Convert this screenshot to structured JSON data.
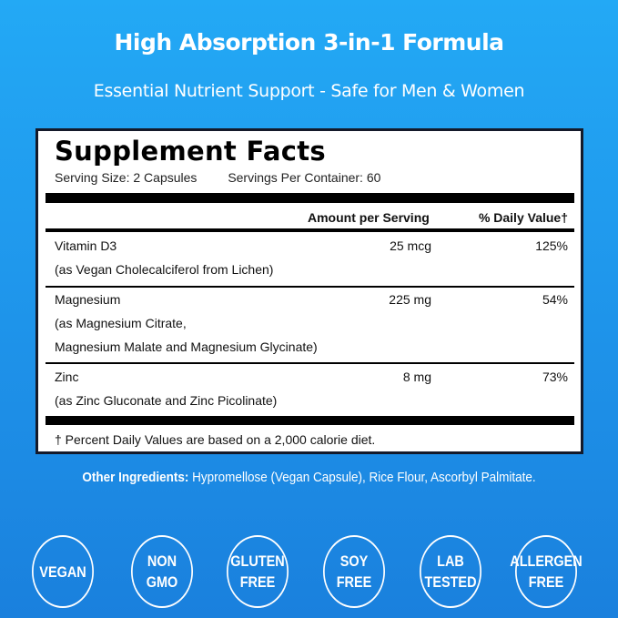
{
  "header": {
    "title": "High Absorption 3-in-1 Formula",
    "subtitle": "Essential Nutrient Support - Safe for Men & Women"
  },
  "facts": {
    "title": "Supplement Facts",
    "serving_size": "Serving Size: 2 Capsules",
    "servings_per_container": "Servings Per Container: 60",
    "col_amount": "Amount per Serving",
    "col_dv": "% Daily Value†",
    "rows": [
      {
        "name": "Vitamin D3",
        "source": [
          "(as Vegan Cholecalciferol from Lichen)"
        ],
        "amount": "25 mcg",
        "dv": "125%"
      },
      {
        "name": "Magnesium",
        "source": [
          "(as Magnesium Citrate,",
          "Magnesium Malate and Magnesium Glycinate)"
        ],
        "amount": "225 mg",
        "dv": "54%"
      },
      {
        "name": "Zinc",
        "source": [
          "(as Zinc Gluconate and Zinc Picolinate)"
        ],
        "amount": "8 mg",
        "dv": "73%"
      }
    ],
    "footnote": "† Percent Daily Values are based on a 2,000 calorie diet."
  },
  "other_ingredients": {
    "label": "Other Ingredients:",
    "text": " Hypromellose (Vegan Capsule), Rice Flour, Ascorbyl Palmitate."
  },
  "badges": [
    "VEGAN",
    "NON\nGMO",
    "GLUTEN\nFREE",
    "SOY\nFREE",
    "LAB\nTESTED",
    "ALLERGEN\nFREE"
  ],
  "colors": {
    "background_top": "#23a9f5",
    "background_bottom": "#1a80dd",
    "border": "#141a2a"
  }
}
